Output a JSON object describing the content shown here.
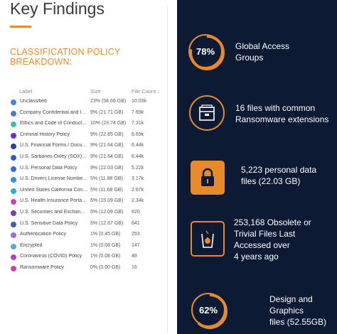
{
  "header": {
    "title": "Key Findings",
    "subtitle": "CLASSIFICATION POLICY BREAKDOWN:"
  },
  "table": {
    "col_label": "Label",
    "col_size": "Size",
    "col_count": "File Count",
    "sort_glyph": "↓",
    "rows": [
      {
        "label": "Unclassified",
        "size": "23% (58.66 GB)",
        "count": "10.03k",
        "color": "#3b86d6"
      },
      {
        "label": "Company Confidential and Int...",
        "size": "9% (21.71 GB)",
        "count": "7.69k",
        "color": "#4a7cc7"
      },
      {
        "label": "Ethics and Code of Conduct P...",
        "size": "10% (23.74 GB)",
        "count": "7.31k",
        "color": "#3bbdb0"
      },
      {
        "label": "Criminal History Policy",
        "size": "9% (22.85 GB)",
        "count": "6.69k",
        "color": "#6b2fd6"
      },
      {
        "label": "U.S. Financial Forms / Docum...",
        "size": "9% (21.64 GB)",
        "count": "6.44k",
        "color": "#2a3f9e"
      },
      {
        "label": "U.S. Sarbanes-Oxley (SOX) Pol...",
        "size": "9% (21.64 GB)",
        "count": "6.44k",
        "color": "#2f5dc2"
      },
      {
        "label": "U.S. Personal Data Policy",
        "size": "9% (22.03 GB)",
        "count": "5.22k",
        "color": "#2f6fd0"
      },
      {
        "label": "U.S. Drivers License Number P...",
        "size": "5% (11.88 GB)",
        "count": "3.17k",
        "color": "#3a8fd8"
      },
      {
        "label": "United States California Cons...",
        "size": "5% (11.68 GB)",
        "count": "2.67k",
        "color": "#1fb5c9"
      },
      {
        "label": "U.S. Health Insurance Portabili...",
        "size": "6% (15.09 GB)",
        "count": "2.34k",
        "color": "#d03fb8"
      },
      {
        "label": "U.S. Securities and Exchange ...",
        "size": "5% (12.09 GB)",
        "count": "820",
        "color": "#7a3fb4"
      },
      {
        "label": "U.S. Sensitive Data Policy",
        "size": "5% (12.67 GB)",
        "count": "641",
        "color": "#3e5fa8"
      },
      {
        "label": "Authentication Policy",
        "size": "1% (0.45 GB)",
        "count": "253",
        "color": "#9b6fd6"
      },
      {
        "label": "Encrypted",
        "size": "1% (0.08 GB)",
        "count": "147",
        "color": "#5aa9e6"
      },
      {
        "label": "Coronavirus (COVID) Policy",
        "size": "1% (0.08 GB)",
        "count": "48",
        "color": "#b03fd0"
      },
      {
        "label": "Ransomware Policy",
        "size": "0% (0.00 GB)",
        "count": "16",
        "color": "#d23fa6"
      }
    ]
  },
  "stats": [
    {
      "badge": "78%",
      "percent": 78,
      "line1": "Global Access",
      "line2": "Groups",
      "icon": "percent-ring"
    },
    {
      "line1": "16 files with common",
      "line2": "Ransomware extensions",
      "icon": "file-cabinet-icon"
    },
    {
      "line1": "5,223 personal data",
      "line2": "files (22.03 GB)",
      "icon": "lock-icon"
    },
    {
      "line1": "253,168 Obsolete or",
      "line2": "Trivial Files Last",
      "line3": "Accessed over",
      "line4": "4 years ago",
      "icon": "trash-icon"
    },
    {
      "badge": "62%",
      "percent": 62,
      "line1": "Design and",
      "line2": "Graphics",
      "line3": "files (52.55GB)",
      "icon": "percent-ring"
    }
  ],
  "colors": {
    "accent": "#e98a2a",
    "navy": "#0d1a33"
  }
}
